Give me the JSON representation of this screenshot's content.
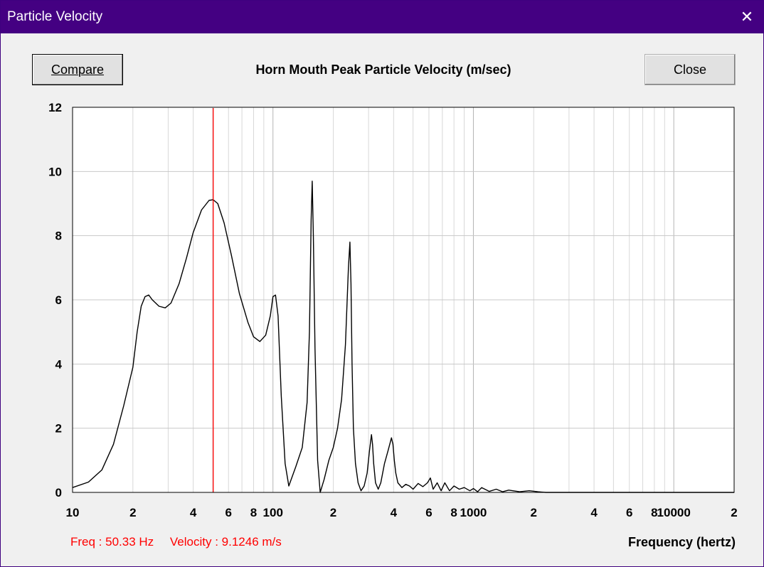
{
  "window": {
    "title": "Particle Velocity",
    "close_glyph": "✕",
    "close_icon": "close-icon"
  },
  "toolbar": {
    "compare_label": "Compare",
    "close_label": "Close"
  },
  "readout": {
    "freq": "Freq : 50.33 Hz",
    "velocity": "Velocity : 9.1246 m/s"
  },
  "colors": {
    "title_bar": "#440082",
    "cursor": "#ff0000",
    "curve": "#000000",
    "grid": "#c8c8c8"
  },
  "chart_data": {
    "type": "line",
    "title": "Horn Mouth Peak Particle Velocity (m/sec)",
    "xlabel": "Frequency (hertz)",
    "ylabel": "",
    "x_scale": "log",
    "xlim": [
      10,
      20000
    ],
    "ylim": [
      0,
      12
    ],
    "grid": true,
    "y_ticks": [
      "0",
      "2",
      "4",
      "6",
      "8",
      "10",
      "12"
    ],
    "x_tick_labels": [
      {
        "x": 10,
        "label": "10"
      },
      {
        "x": 20,
        "label": "2"
      },
      {
        "x": 40,
        "label": "4"
      },
      {
        "x": 60,
        "label": "6"
      },
      {
        "x": 80,
        "label": "8"
      },
      {
        "x": 100,
        "label": "100"
      },
      {
        "x": 200,
        "label": "2"
      },
      {
        "x": 400,
        "label": "4"
      },
      {
        "x": 600,
        "label": "6"
      },
      {
        "x": 800,
        "label": "8"
      },
      {
        "x": 1000,
        "label": "1000"
      },
      {
        "x": 2000,
        "label": "2"
      },
      {
        "x": 4000,
        "label": "4"
      },
      {
        "x": 6000,
        "label": "6"
      },
      {
        "x": 8000,
        "label": "8"
      },
      {
        "x": 10000,
        "label": "10000"
      },
      {
        "x": 20000,
        "label": "2"
      }
    ],
    "cursor": {
      "x": 50.33,
      "y": 9.1246
    },
    "series": [
      {
        "x": [
          10,
          12,
          14,
          16,
          18,
          20,
          21,
          22,
          23,
          24,
          25,
          27,
          29,
          31,
          34,
          37,
          40,
          44,
          48,
          50.33,
          53,
          57,
          62,
          68,
          75,
          80,
          86,
          92,
          97,
          100,
          103,
          106,
          110,
          115,
          120,
          130,
          140,
          148,
          152,
          155,
          157,
          159,
          162,
          167,
          172,
          180,
          190,
          200,
          210,
          220,
          230,
          238,
          242,
          245,
          248,
          252,
          258,
          266,
          275,
          285,
          295,
          303,
          310,
          314,
          318,
          325,
          335,
          345,
          360,
          375,
          390,
          397,
          403,
          410,
          420,
          440,
          460,
          480,
          500,
          530,
          560,
          590,
          610,
          630,
          660,
          690,
          720,
          760,
          800,
          850,
          900,
          960,
          1000,
          1050,
          1100,
          1200,
          1300,
          1400,
          1500,
          1700,
          1900,
          2100,
          2300,
          3000,
          5000,
          10000,
          20000
        ],
        "values": [
          0.15,
          0.32,
          0.7,
          1.5,
          2.7,
          3.9,
          5.0,
          5.8,
          6.1,
          6.15,
          6.0,
          5.8,
          5.75,
          5.9,
          6.5,
          7.3,
          8.1,
          8.8,
          9.1,
          9.12,
          9.0,
          8.4,
          7.4,
          6.2,
          5.3,
          4.85,
          4.7,
          4.9,
          5.5,
          6.1,
          6.15,
          5.5,
          3.0,
          0.9,
          0.2,
          0.8,
          1.4,
          2.8,
          5.0,
          8.5,
          9.7,
          8.0,
          4.5,
          1.0,
          0.0,
          0.4,
          1.0,
          1.4,
          2.0,
          2.9,
          4.6,
          7.0,
          7.8,
          6.5,
          4.0,
          2.0,
          0.9,
          0.3,
          0.05,
          0.2,
          0.6,
          1.3,
          1.8,
          1.5,
          0.9,
          0.3,
          0.1,
          0.3,
          0.9,
          1.3,
          1.7,
          1.5,
          1.0,
          0.6,
          0.3,
          0.15,
          0.25,
          0.2,
          0.1,
          0.28,
          0.18,
          0.3,
          0.45,
          0.1,
          0.3,
          0.05,
          0.3,
          0.05,
          0.2,
          0.1,
          0.15,
          0.05,
          0.12,
          0.02,
          0.15,
          0.03,
          0.1,
          0.02,
          0.07,
          0.02,
          0.05,
          0.02,
          0.0,
          0.0,
          0.0,
          0.0,
          0.0
        ]
      }
    ]
  }
}
